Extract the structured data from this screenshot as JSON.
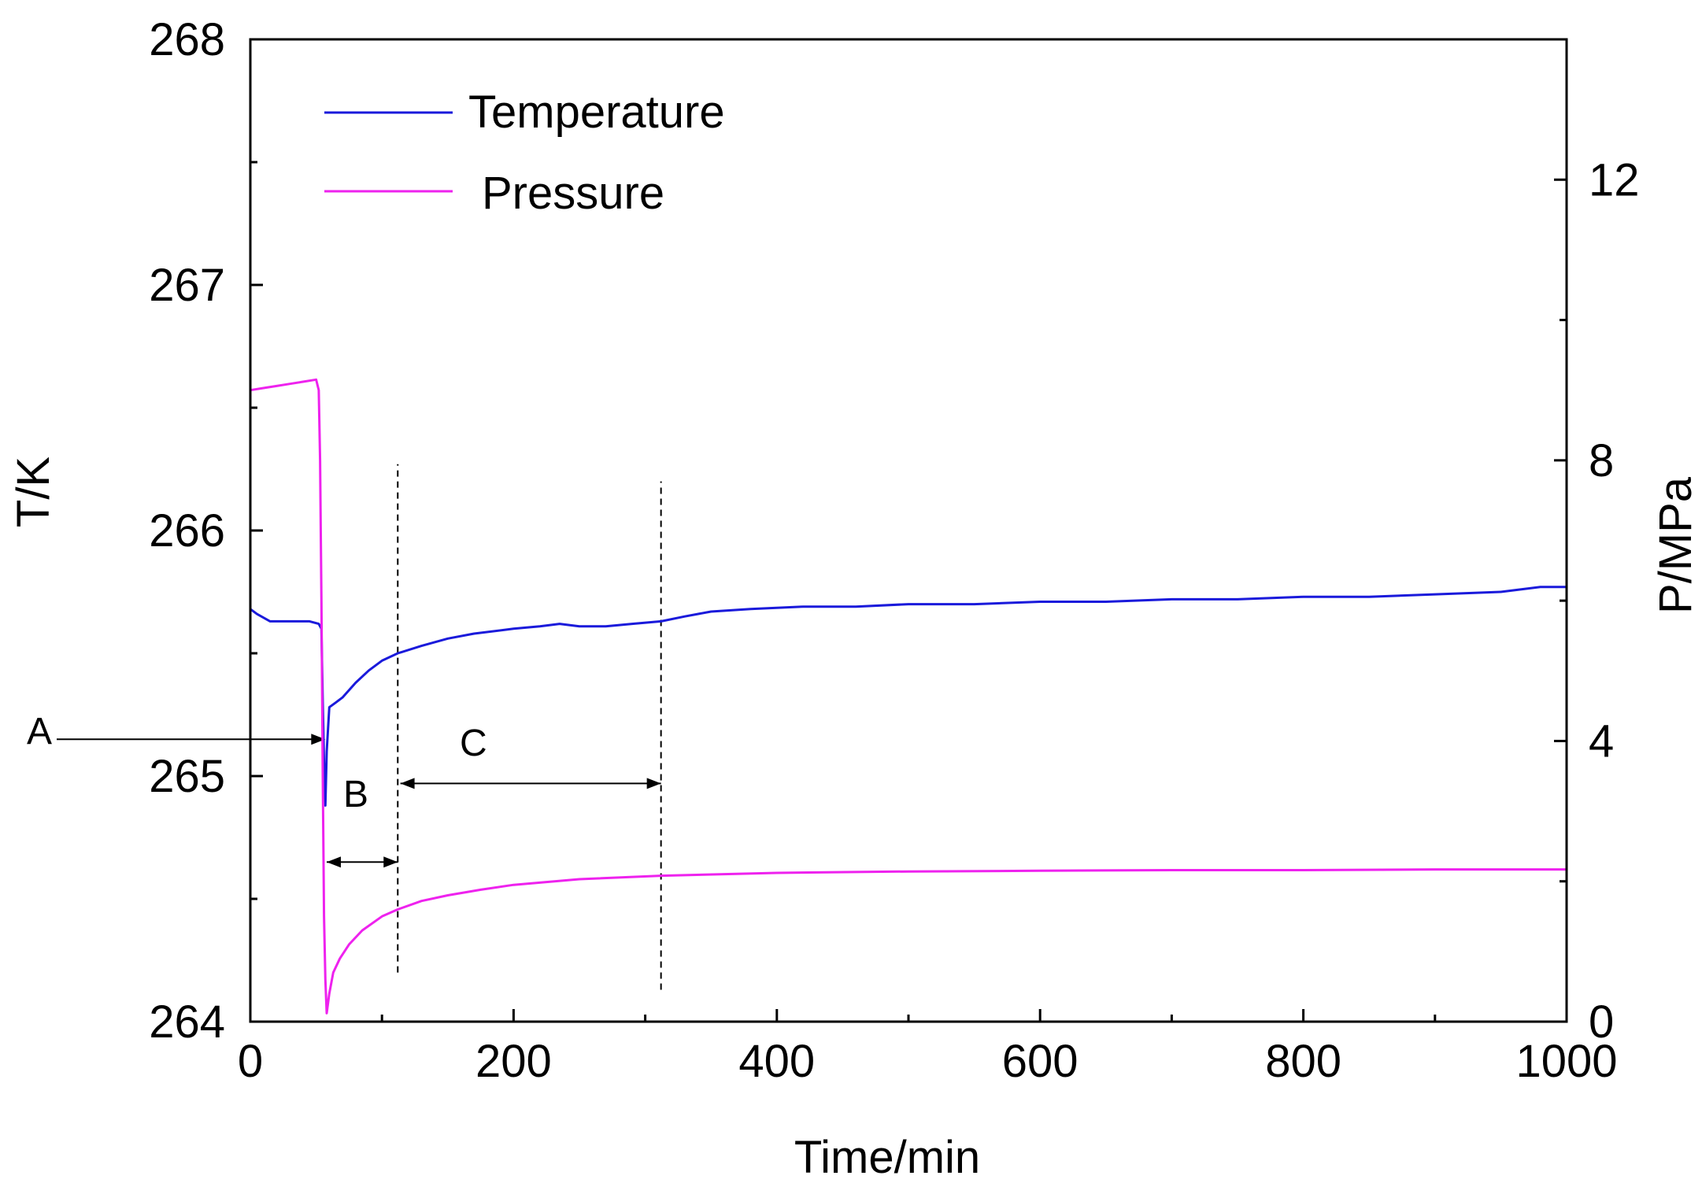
{
  "chart_data": {
    "type": "line",
    "title": "",
    "xlabel": "Time/min",
    "ylabel": "T/K",
    "y2label": "P/MPa",
    "xlim": [
      0,
      1000
    ],
    "ylim": [
      264,
      268
    ],
    "y2lim": [
      0,
      14
    ],
    "x_ticks": [
      "0",
      "200",
      "400",
      "600",
      "800",
      "1000"
    ],
    "x_tick_values": [
      0,
      200,
      400,
      600,
      800,
      1000
    ],
    "y_ticks": [
      "264",
      "265",
      "266",
      "267",
      "268"
    ],
    "y_tick_values": [
      264,
      265,
      266,
      267,
      268
    ],
    "y2_ticks": [
      "0",
      "4",
      "8",
      "12"
    ],
    "y2_tick_values": [
      0,
      4,
      8,
      12
    ],
    "legend": {
      "position": "top-left",
      "entries": [
        "Temperature",
        "Pressure"
      ]
    },
    "colors": {
      "temperature": "#1a1adb",
      "pressure": "#ee22ee",
      "axis": "#000000"
    },
    "series": [
      {
        "name": "Temperature",
        "axis": "left",
        "x": [
          0,
          5,
          15,
          30,
          45,
          52,
          54,
          55,
          56,
          57,
          58,
          60,
          65,
          70,
          80,
          90,
          100,
          112,
          130,
          150,
          170,
          200,
          220,
          235,
          250,
          270,
          290,
          312,
          330,
          350,
          380,
          420,
          460,
          500,
          550,
          600,
          650,
          700,
          750,
          800,
          850,
          900,
          950,
          980,
          1000
        ],
        "y": [
          265.68,
          265.66,
          265.63,
          265.63,
          265.63,
          265.62,
          265.6,
          265.3,
          265.05,
          264.88,
          265.1,
          265.28,
          265.3,
          265.32,
          265.38,
          265.43,
          265.47,
          265.5,
          265.53,
          265.56,
          265.58,
          265.6,
          265.61,
          265.62,
          265.61,
          265.61,
          265.62,
          265.63,
          265.65,
          265.67,
          265.68,
          265.69,
          265.69,
          265.7,
          265.7,
          265.71,
          265.71,
          265.72,
          265.72,
          265.73,
          265.73,
          265.74,
          265.75,
          265.77,
          265.77
        ]
      },
      {
        "name": "Pressure",
        "axis": "right",
        "x": [
          0,
          10,
          20,
          30,
          40,
          50,
          52,
          53,
          54,
          55,
          56,
          57,
          58,
          60,
          63,
          68,
          75,
          85,
          100,
          112,
          130,
          150,
          175,
          200,
          250,
          312,
          400,
          500,
          600,
          700,
          800,
          900,
          1000
        ],
        "y": [
          9.0,
          9.03,
          9.06,
          9.09,
          9.12,
          9.15,
          9.0,
          8.0,
          6.0,
          3.5,
          1.5,
          0.6,
          0.12,
          0.4,
          0.7,
          0.9,
          1.1,
          1.3,
          1.5,
          1.6,
          1.72,
          1.8,
          1.88,
          1.95,
          2.03,
          2.08,
          2.12,
          2.14,
          2.15,
          2.16,
          2.16,
          2.17,
          2.17
        ]
      }
    ],
    "annotations": {
      "A": {
        "label": "A",
        "arrow_to_x": 57,
        "arrow_at_T": 265.15
      },
      "B": {
        "label": "B",
        "from_x": 58,
        "to_x": 112,
        "at_T": 264.65
      },
      "C": {
        "label": "C",
        "from_x": 114,
        "to_x": 312,
        "at_T": 264.97
      },
      "dashed_lines": [
        {
          "x": 112,
          "from_T": 264.2,
          "to_T": 266.27
        },
        {
          "x": 312,
          "from_T": 264.13,
          "to_T": 266.2
        }
      ]
    }
  }
}
